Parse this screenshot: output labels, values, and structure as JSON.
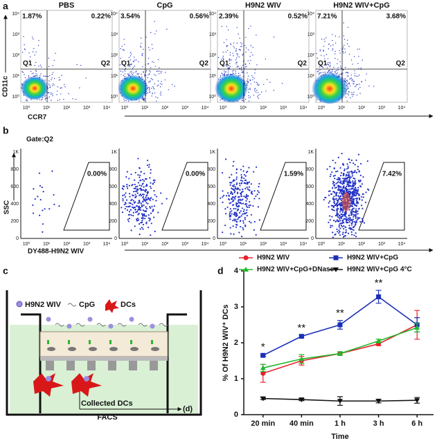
{
  "panel_a": {
    "label": "a",
    "titles": [
      "PBS",
      "CpG",
      "H9N2 WIV",
      "H9N2 WIV+CpG"
    ],
    "q1_percents": [
      "1.87%",
      "3.54%",
      "2.39%",
      "7.21%"
    ],
    "q2_percents": [
      "0.22%",
      "0.56%",
      "0.52%",
      "3.68%"
    ],
    "quadrants": [
      "Q1",
      "Q2"
    ],
    "y_axis_label": "CD11c",
    "x_axis_label": "CCR7",
    "ticks": [
      "10⁰",
      "10¹",
      "10²",
      "10³",
      "10⁴"
    ]
  },
  "panel_b": {
    "label": "b",
    "gate": "Gate:Q2",
    "percents": [
      "0.00%",
      "0.00%",
      "1.59%",
      "7.42%"
    ],
    "y_axis_label": "SSC",
    "x_axis_label": "DY488-H9N2 WIV",
    "y_ticks": [
      "0",
      "200",
      "400",
      "600",
      "800",
      "1K"
    ],
    "x_ticks": [
      "10⁰",
      "10¹",
      "10²",
      "10³",
      "10⁴"
    ]
  },
  "panel_c": {
    "label": "c",
    "legend": [
      "H9N2 WIV",
      "CpG",
      "DCs"
    ],
    "collected": "Collected DCs",
    "facs": "FACS",
    "target": "(d)"
  },
  "chart_data": {
    "type": "line",
    "panel_label": "d",
    "x_label": "Time",
    "y_label": "% Of H9N2 WIV⁺ DCs",
    "categories": [
      "20 min",
      "40 min",
      "1 h",
      "3 h",
      "6 h"
    ],
    "ylim": [
      0,
      4
    ],
    "yticks": [
      0,
      1,
      2,
      3,
      4
    ],
    "series": [
      {
        "name": "H9N2 WIV",
        "color": "#e8202a",
        "marker": "circle",
        "values": [
          1.15,
          1.5,
          1.7,
          1.97,
          2.5
        ],
        "errors": [
          0.25,
          0.12,
          0.05,
          0.05,
          0.4
        ]
      },
      {
        "name": "H9N2 WIV+CpG",
        "color": "#1a2fb8",
        "marker": "square",
        "values": [
          1.65,
          2.18,
          2.5,
          3.28,
          2.5
        ],
        "errors": [
          0.03,
          0.03,
          0.12,
          0.18,
          0.2
        ]
      },
      {
        "name": "H9N2 WIV+CpG+DNase",
        "color": "#22b82a",
        "marker": "triangle",
        "values": [
          1.3,
          1.55,
          1.7,
          2.05,
          2.42
        ],
        "errors": [
          0.1,
          0.12,
          0.05,
          0.05,
          0.12
        ]
      },
      {
        "name": "H9N2 WIV+CpG 4°C",
        "color": "#111111",
        "marker": "triangle-down",
        "values": [
          0.45,
          0.42,
          0.38,
          0.38,
          0.4
        ],
        "errors": [
          0.03,
          0.03,
          0.12,
          0.05,
          0.08
        ]
      }
    ],
    "annotations": [
      {
        "x": "20 min",
        "text": "*"
      },
      {
        "x": "40 min",
        "text": "**"
      },
      {
        "x": "1 h",
        "text": "**"
      },
      {
        "x": "3 h",
        "text": "**"
      }
    ]
  }
}
